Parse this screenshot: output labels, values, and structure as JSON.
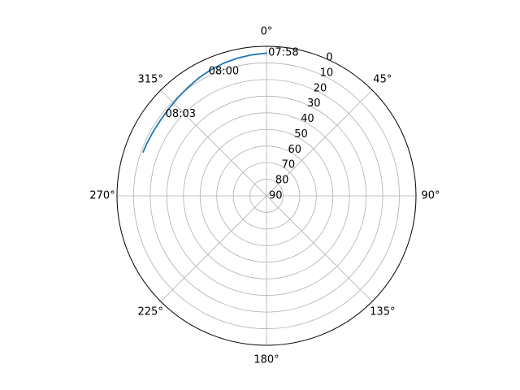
{
  "chart_data": {
    "type": "line",
    "projection": "polar",
    "theta_zero_location": "N",
    "theta_direction": "clockwise",
    "r_axis": "elevation, inverted (0 at rim, 90 at center)",
    "angle_tick_labels": [
      "0°",
      "45°",
      "90°",
      "135°",
      "180°",
      "225°",
      "270°",
      "315°"
    ],
    "angle_ticks_deg": [
      0,
      45,
      90,
      135,
      180,
      225,
      270,
      315
    ],
    "r_ticks": [
      0,
      10,
      20,
      30,
      40,
      50,
      60,
      70,
      80,
      90
    ],
    "r_tick_labels": [
      "0",
      "10",
      "20",
      "30",
      "40",
      "50",
      "60",
      "70",
      "80",
      "90"
    ],
    "r_tick_label_angle_deg": 22.5,
    "grid": true,
    "series": [
      {
        "azimuth_deg": [
          0,
          -6,
          -12,
          -18,
          -24,
          -30,
          -36,
          -42,
          -48,
          -54,
          -60,
          -66,
          -70.4
        ],
        "elevation_deg": [
          4.1,
          4.7,
          5.3,
          6.1,
          7.1,
          8.2,
          9.4,
          10.4,
          11.2,
          11.6,
          11.6,
          11.4,
          11.2
        ],
        "color": "#1f77b4"
      }
    ],
    "point_labels": [
      {
        "text": "07:58",
        "azimuth_deg": 0.7,
        "elevation_deg": 4
      },
      {
        "text": "08:00",
        "azimuth_deg": -25,
        "elevation_deg": 7.5
      },
      {
        "text": "08:03",
        "azimuth_deg": -51,
        "elevation_deg": 11.7
      }
    ]
  }
}
